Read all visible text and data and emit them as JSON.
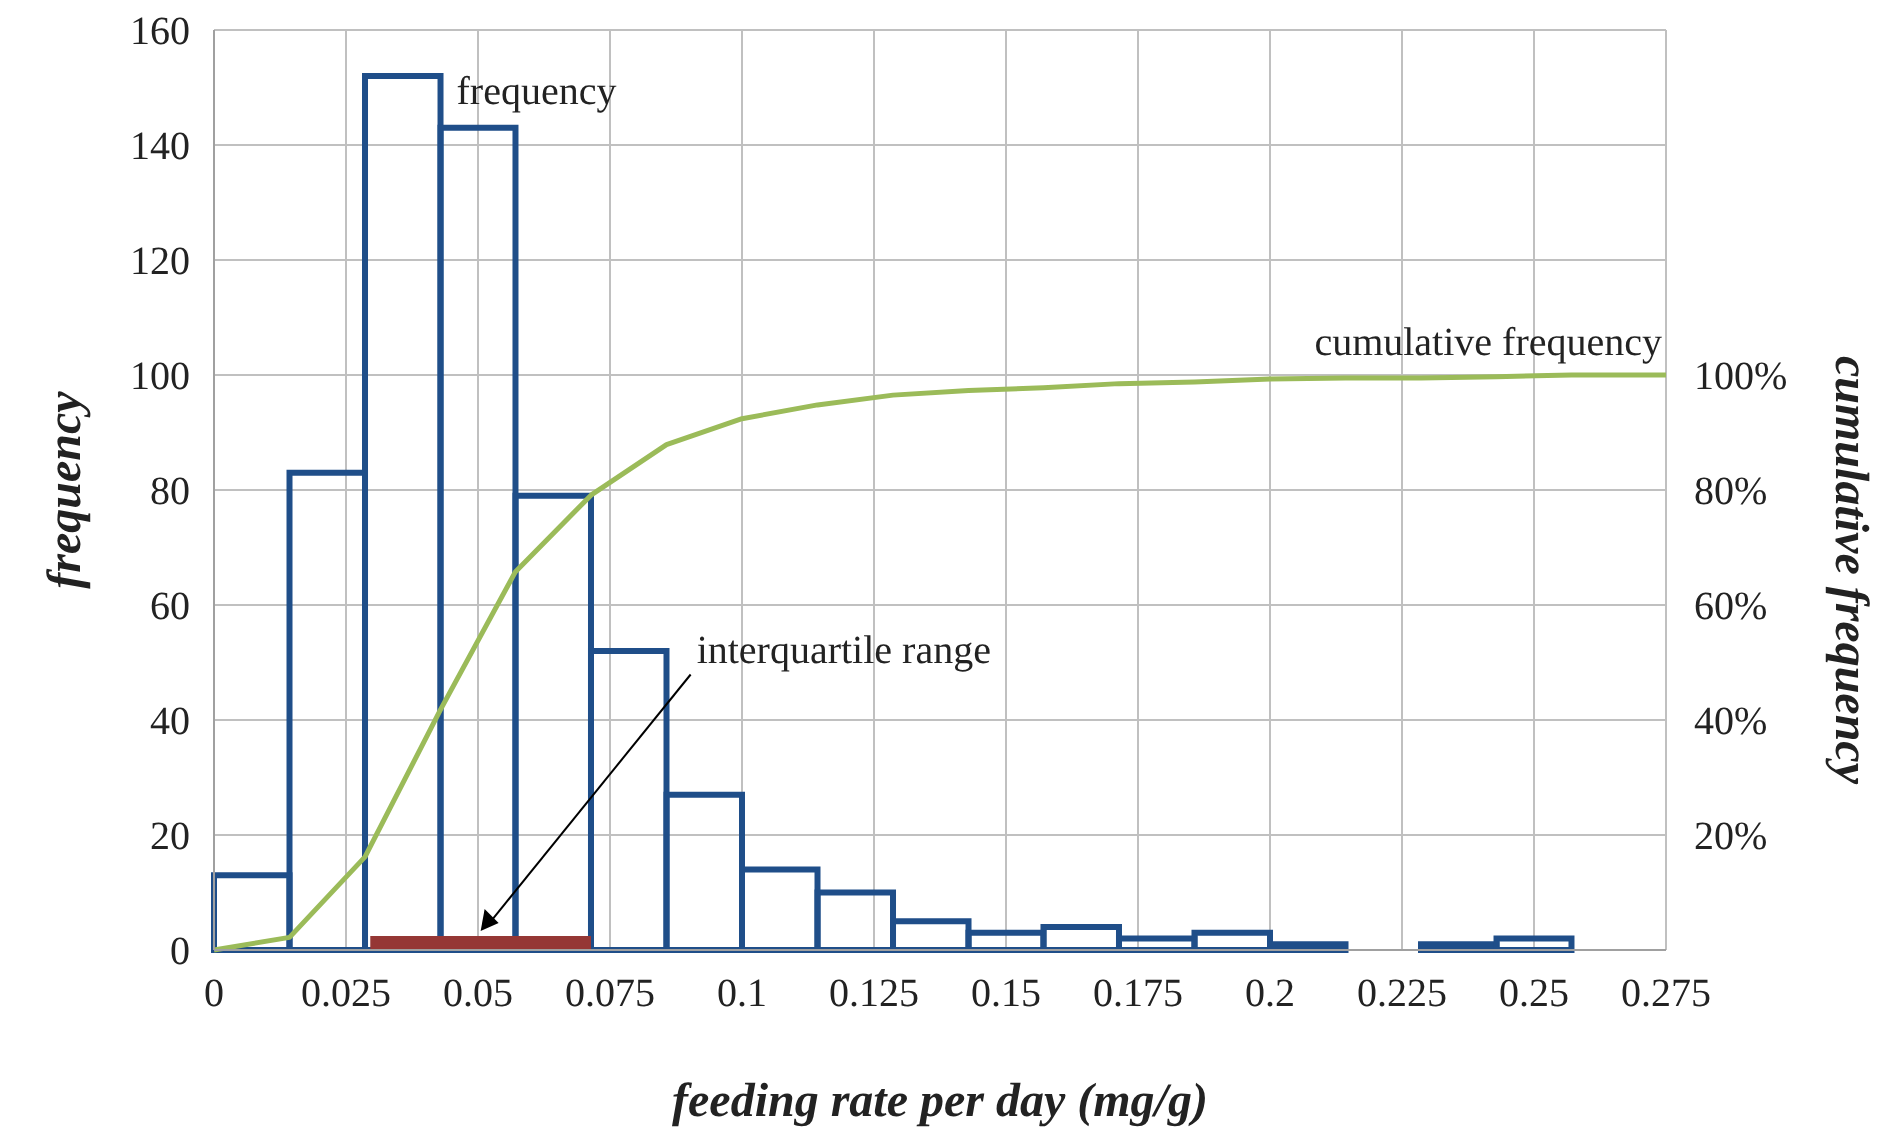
{
  "chart_data": {
    "type": "histogram",
    "xlabel": "feeding rate per day (mg/g)",
    "ylabel": "frequency",
    "y2label": "cumulative frequency",
    "bins": [
      0,
      0.0143,
      0.0286,
      0.0429,
      0.0571,
      0.0714,
      0.0857,
      0.1,
      0.1143,
      0.1286,
      0.1429,
      0.1571,
      0.1714,
      0.1857,
      0.2,
      0.2143,
      0.2286,
      0.2429,
      0.2571
    ],
    "series": [
      {
        "name": "frequency",
        "color": "#1f4e89",
        "values": [
          13,
          83,
          152,
          143,
          79,
          52,
          27,
          14,
          10,
          5,
          3,
          4,
          2,
          3,
          1,
          0,
          1,
          2
        ]
      },
      {
        "name": "cumulative frequency",
        "type": "line",
        "axis": "y2",
        "color": "#9bbb59",
        "x": [
          0,
          0.0143,
          0.0286,
          0.0429,
          0.0571,
          0.0714,
          0.0857,
          0.1,
          0.1143,
          0.1286,
          0.1429,
          0.1571,
          0.1714,
          0.1857,
          0.2,
          0.2143,
          0.2286,
          0.2429,
          0.2571,
          0.275
        ],
        "values": [
          0,
          2.2,
          16.2,
          41.8,
          65.8,
          79.1,
          87.9,
          92.4,
          94.8,
          96.5,
          97.3,
          97.8,
          98.5,
          98.8,
          99.3,
          99.5,
          99.5,
          99.7,
          100,
          100
        ]
      },
      {
        "type": "line",
        "color": "#953735",
        "x": [
          0.0296,
          0.0714
        ],
        "values": [
          1.2,
          1.2
        ]
      }
    ],
    "annotations": [
      "interquartile range"
    ],
    "xlim": [
      0,
      0.275
    ],
    "xticks": [
      0,
      0.025,
      0.05,
      0.075,
      0.1,
      0.125,
      0.15,
      0.175,
      0.2,
      0.225,
      0.25,
      0.275
    ],
    "ylim": [
      0,
      160
    ],
    "yticks": [
      0,
      20,
      40,
      60,
      80,
      100,
      120,
      140,
      160
    ],
    "y2lim": [
      0,
      160
    ],
    "y2ticks": [
      {
        "value": 20,
        "label": "20%"
      },
      {
        "value": 40,
        "label": "40%"
      },
      {
        "value": 60,
        "label": "60%"
      },
      {
        "value": 80,
        "label": "80%"
      },
      {
        "value": 100,
        "label": "100%"
      }
    ],
    "grid": true
  }
}
